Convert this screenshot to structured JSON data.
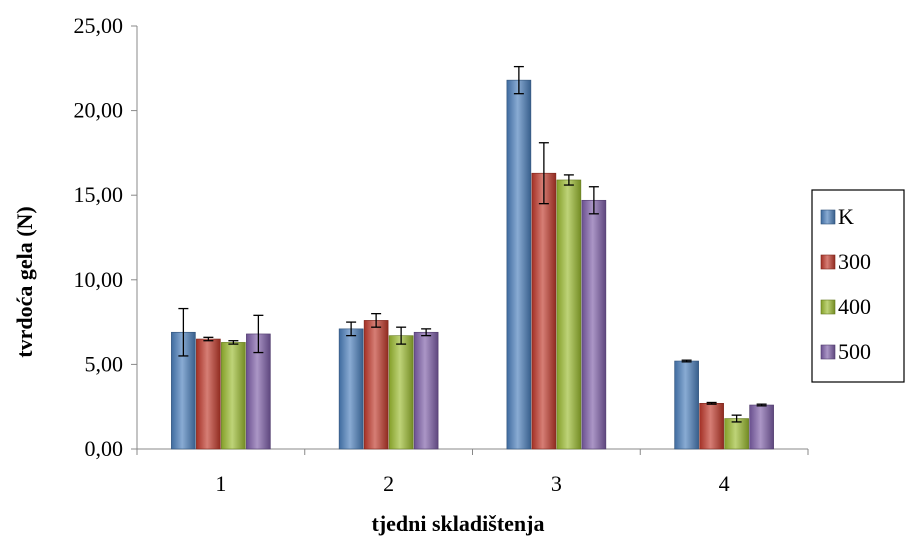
{
  "chart_data": {
    "type": "bar",
    "title": "",
    "xlabel": "tjedni skladištenja",
    "ylabel": "tvrdoća gela (N)",
    "ylim": [
      0,
      25
    ],
    "y_ticks": [
      "0,00",
      "5,00",
      "10,00",
      "15,00",
      "20,00",
      "25,00"
    ],
    "y_tick_values": [
      0,
      5,
      10,
      15,
      20,
      25
    ],
    "categories": [
      "1",
      "2",
      "3",
      "4"
    ],
    "grid": false,
    "legend_position": "right",
    "series": [
      {
        "name": "K",
        "color": "#4a7ebb",
        "values": [
          6.9,
          7.1,
          21.8,
          5.2
        ],
        "errors": [
          1.4,
          0.4,
          0.8,
          0.05
        ]
      },
      {
        "name": "300",
        "color": "#c0392b",
        "values": [
          6.5,
          7.6,
          16.3,
          2.7
        ],
        "errors": [
          0.1,
          0.4,
          1.8,
          0.05
        ]
      },
      {
        "name": "400",
        "color": "#9bbb30",
        "values": [
          6.3,
          6.7,
          15.9,
          1.8
        ],
        "errors": [
          0.1,
          0.5,
          0.3,
          0.2
        ]
      },
      {
        "name": "500",
        "color": "#7d5ea8",
        "values": [
          6.8,
          6.9,
          14.7,
          2.6
        ],
        "errors": [
          1.1,
          0.2,
          0.8,
          0.05
        ]
      }
    ]
  }
}
